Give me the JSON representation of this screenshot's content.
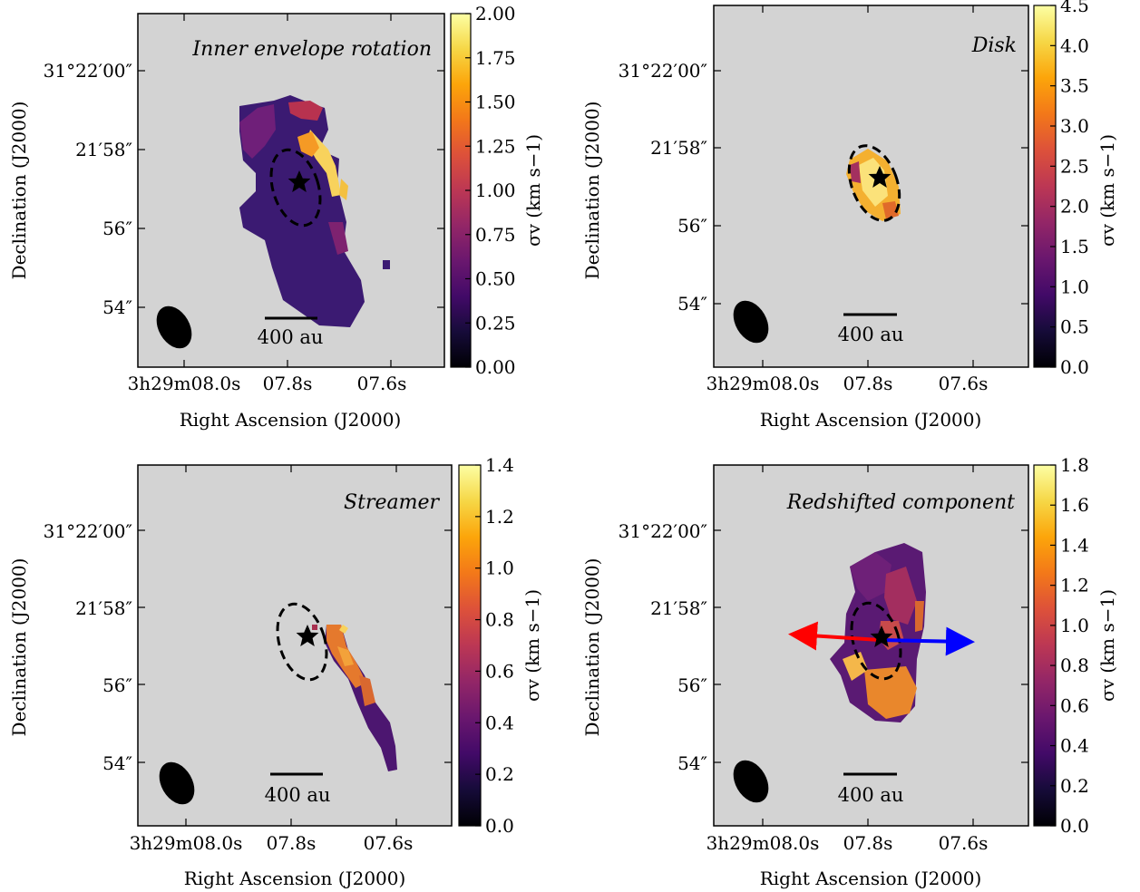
{
  "chart_data": [
    {
      "type": "heatmap",
      "title": "Inner envelope rotation",
      "xlabel": "Right Ascension (J2000)",
      "ylabel": "Declination (J2000)",
      "x_ticks": [
        "3h29m08.0s",
        "07.8s",
        "07.6s"
      ],
      "y_ticks": [
        "31°22′00″",
        "21′58″",
        "56″",
        "54″"
      ],
      "colorbar": {
        "label": "σv (km s−1)",
        "ticks": [
          "0.00",
          "0.25",
          "0.50",
          "0.75",
          "1.00",
          "1.25",
          "1.50",
          "1.75",
          "2.00"
        ],
        "min": 0,
        "max": 2.0
      },
      "scale_bar": "400 au",
      "colormap": "inferno",
      "grid": false
    },
    {
      "type": "heatmap",
      "title": "Disk",
      "xlabel": "Right Ascension (J2000)",
      "ylabel": "Declination (J2000)",
      "x_ticks": [
        "3h29m08.0s",
        "07.8s",
        "07.6s"
      ],
      "y_ticks": [
        "31°22′00″",
        "21′58″",
        "56″",
        "54″"
      ],
      "colorbar": {
        "label": "σv (km s−1)",
        "ticks": [
          "0.0",
          "0.5",
          "1.0",
          "1.5",
          "2.0",
          "2.5",
          "3.0",
          "3.5",
          "4.0",
          "4.5"
        ],
        "min": 0,
        "max": 4.5
      },
      "scale_bar": "400 au",
      "colormap": "inferno",
      "grid": false
    },
    {
      "type": "heatmap",
      "title": "Streamer",
      "xlabel": "Right Ascension (J2000)",
      "ylabel": "Declination (J2000)",
      "x_ticks": [
        "3h29m08.0s",
        "07.8s",
        "07.6s"
      ],
      "y_ticks": [
        "31°22′00″",
        "21′58″",
        "56″",
        "54″"
      ],
      "colorbar": {
        "label": "σv (km s−1)",
        "ticks": [
          "0.0",
          "0.2",
          "0.4",
          "0.6",
          "0.8",
          "1.0",
          "1.2",
          "1.4"
        ],
        "min": 0,
        "max": 1.4
      },
      "scale_bar": "400 au",
      "colormap": "inferno",
      "grid": false
    },
    {
      "type": "heatmap",
      "title": "Redshifted component",
      "xlabel": "Right Ascension (J2000)",
      "ylabel": "Declination (J2000)",
      "x_ticks": [
        "3h29m08.0s",
        "07.8s",
        "07.6s"
      ],
      "y_ticks": [
        "31°22′00″",
        "21′58″",
        "56″",
        "54″"
      ],
      "colorbar": {
        "label": "σv (km s−1)",
        "ticks": [
          "0.0",
          "0.2",
          "0.4",
          "0.6",
          "0.8",
          "1.0",
          "1.2",
          "1.4",
          "1.6",
          "1.8"
        ],
        "min": 0,
        "max": 1.8
      },
      "scale_bar": "400 au",
      "colormap": "inferno",
      "outflow_arrows": {
        "left_color": "#ff0000",
        "right_color": "#0000ff"
      },
      "grid": false
    }
  ],
  "colors": {
    "background": "#d3d3d3",
    "outflow_red": "#ff0000",
    "outflow_blue": "#0000ff"
  }
}
